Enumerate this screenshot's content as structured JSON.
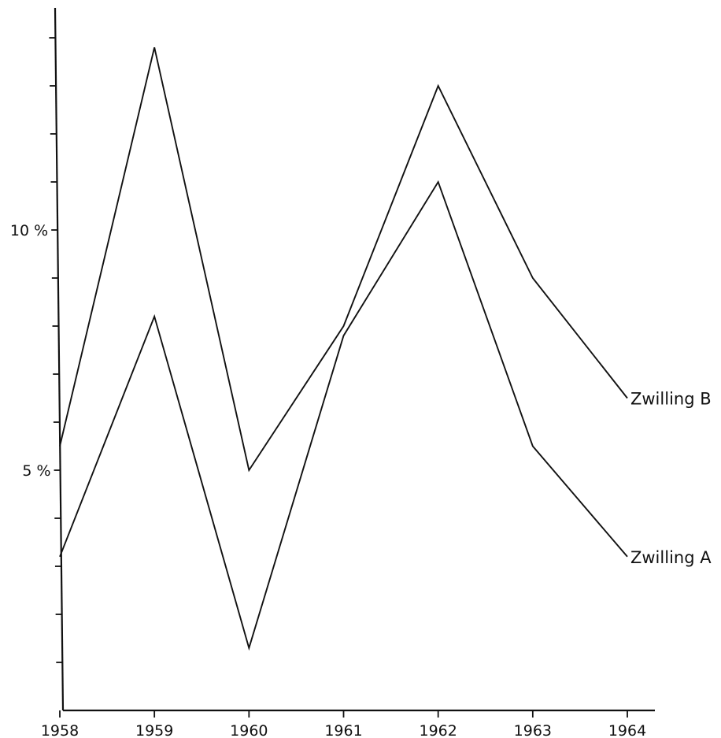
{
  "chart_data": {
    "type": "line",
    "title": "",
    "xlabel": "",
    "ylabel": "",
    "x": [
      1958,
      1959,
      1960,
      1961,
      1962,
      1963,
      1964
    ],
    "x_tick_labels": [
      "1958",
      "1959",
      "1960",
      "1961",
      "1962",
      "1963",
      "1964"
    ],
    "y_tick_labels": [
      {
        "value": 5,
        "label": "5 %"
      },
      {
        "value": 10,
        "label": "10 %"
      }
    ],
    "y_minor_ticks": [
      1,
      2,
      3,
      4,
      5,
      6,
      7,
      8,
      9,
      10,
      11,
      12,
      13,
      14
    ],
    "ylim": [
      0,
      14.5
    ],
    "grid": false,
    "legend": "none (series labeled at line ends)",
    "series": [
      {
        "name": "Zwilling B",
        "values": [
          5.5,
          13.8,
          5.0,
          8.0,
          13.0,
          9.0,
          6.5
        ]
      },
      {
        "name": "Zwilling A",
        "values": [
          3.2,
          8.2,
          1.3,
          7.8,
          11.0,
          5.5,
          3.2
        ]
      }
    ],
    "colors": {
      "line": "#111111",
      "background": "#ffffff"
    }
  }
}
